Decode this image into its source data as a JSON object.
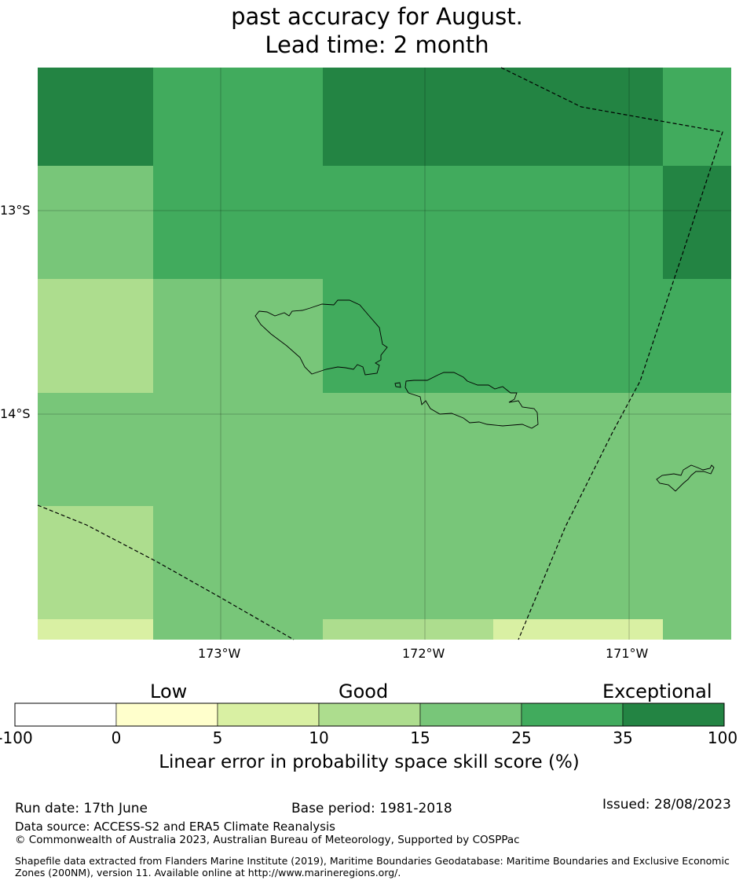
{
  "title_lines": [
    "past accuracy for August.",
    "Lead time: 2 month"
  ],
  "map": {
    "lon_labels": [
      "173°W",
      "172°W",
      "171°W"
    ],
    "lat_labels": [
      "13°S",
      "14°S"
    ],
    "colors": {
      "lt0": "#ffffff",
      "0-5": "#ffffcc",
      "5-10": "#d9f0a3",
      "10-15": "#addd8e",
      "15-25": "#78c679",
      "25-35": "#41ab5d",
      "35-100": "#238443"
    }
  },
  "colorbar": {
    "category_labels": [
      "Low",
      "Good",
      "Exceptional"
    ],
    "boundaries": [
      "-100",
      "0",
      "5",
      "10",
      "15",
      "25",
      "35",
      "100"
    ],
    "title": "Linear error in probability space skill score (%)"
  },
  "footer": {
    "run_date": "Run date: 17th June",
    "base_period": "Base period: 1981-2018",
    "issued": "Issued: 28/08/2023",
    "data_source": "Data source: ACCESS-S2 and ERA5 Climate Reanalysis",
    "copyright": "© Commonwealth of Australia 2023, Australian Bureau of Meteorology, Supported by COSPPac",
    "shapefile": "Shapefile data extracted from Flanders Marine Institute (2019), Maritime Boundaries Geodatabase: Maritime Boundaries and Exclusive Economic Zones (200NM), version 11. Available online at http://www.marineregions.org/."
  }
}
